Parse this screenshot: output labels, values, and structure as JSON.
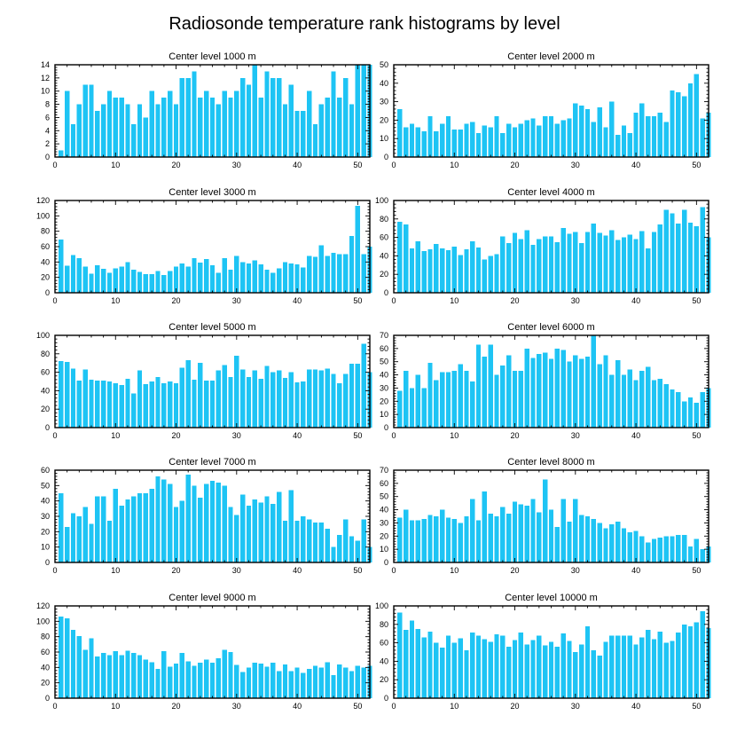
{
  "figure_title": "Radiosonde temperature rank histograms by level",
  "colors": {
    "bar": "#1EC4F4",
    "axis": "#000000",
    "background": "#FFFFFF"
  },
  "chart_data": [
    {
      "type": "bar",
      "title": "Center level 1000 m",
      "xlim": [
        0,
        52
      ],
      "ylim": [
        0,
        14
      ],
      "xticks": [
        0,
        10,
        20,
        30,
        40,
        50
      ],
      "yticks": [
        0,
        2,
        4,
        6,
        8,
        10,
        12,
        14
      ],
      "x": [
        1,
        2,
        3,
        4,
        5,
        6,
        7,
        8,
        9,
        10,
        11,
        12,
        13,
        14,
        15,
        16,
        17,
        18,
        19,
        20,
        21,
        22,
        23,
        24,
        25,
        26,
        27,
        28,
        29,
        30,
        31,
        32,
        33,
        34,
        35,
        36,
        37,
        38,
        39,
        40,
        41,
        42,
        43,
        44,
        45,
        46,
        47,
        48,
        49,
        50,
        51,
        52
      ],
      "values": [
        1,
        10,
        5,
        8,
        11,
        11,
        7,
        8,
        10,
        9,
        9,
        8,
        5,
        8,
        6,
        10,
        8,
        9,
        10,
        8,
        12,
        12,
        13,
        9,
        10,
        9,
        8,
        10,
        9,
        10,
        12,
        11,
        14,
        9,
        13,
        12,
        12,
        8,
        11,
        7,
        7,
        10,
        5,
        8,
        9,
        13,
        9,
        12,
        8,
        14,
        14,
        14
      ]
    },
    {
      "type": "bar",
      "title": "Center level 2000 m",
      "xlim": [
        0,
        52
      ],
      "ylim": [
        0,
        50
      ],
      "xticks": [
        0,
        10,
        20,
        30,
        40,
        50
      ],
      "yticks": [
        0,
        10,
        20,
        30,
        40,
        50
      ],
      "x": [
        1,
        2,
        3,
        4,
        5,
        6,
        7,
        8,
        9,
        10,
        11,
        12,
        13,
        14,
        15,
        16,
        17,
        18,
        19,
        20,
        21,
        22,
        23,
        24,
        25,
        26,
        27,
        28,
        29,
        30,
        31,
        32,
        33,
        34,
        35,
        36,
        37,
        38,
        39,
        40,
        41,
        42,
        43,
        44,
        45,
        46,
        47,
        48,
        49,
        50,
        51,
        52
      ],
      "values": [
        26,
        16,
        18,
        16,
        14,
        22,
        14,
        18,
        22,
        15,
        15,
        18,
        19,
        13,
        17,
        16,
        22,
        13,
        18,
        16,
        18,
        20,
        21,
        17,
        22,
        22,
        18,
        20,
        21,
        29,
        28,
        26,
        19,
        27,
        16,
        30,
        12,
        17,
        13,
        24,
        29,
        22,
        22,
        24,
        19,
        36,
        35,
        33,
        40,
        45,
        21,
        24
      ]
    },
    {
      "type": "bar",
      "title": "Center level 3000 m",
      "xlim": [
        0,
        52
      ],
      "ylim": [
        0,
        120
      ],
      "xticks": [
        0,
        10,
        20,
        30,
        40,
        50
      ],
      "yticks": [
        0,
        20,
        40,
        60,
        80,
        100,
        120
      ],
      "x": [
        1,
        2,
        3,
        4,
        5,
        6,
        7,
        8,
        9,
        10,
        11,
        12,
        13,
        14,
        15,
        16,
        17,
        18,
        19,
        20,
        21,
        22,
        23,
        24,
        25,
        26,
        27,
        28,
        29,
        30,
        31,
        32,
        33,
        34,
        35,
        36,
        37,
        38,
        39,
        40,
        41,
        42,
        43,
        44,
        45,
        46,
        47,
        48,
        49,
        50,
        51,
        52
      ],
      "values": [
        69,
        35,
        49,
        45,
        34,
        25,
        36,
        31,
        26,
        32,
        34,
        40,
        30,
        27,
        24,
        24,
        28,
        23,
        28,
        34,
        38,
        34,
        45,
        39,
        44,
        36,
        26,
        45,
        30,
        48,
        40,
        38,
        42,
        37,
        30,
        26,
        32,
        40,
        38,
        37,
        33,
        48,
        47,
        62,
        48,
        52,
        50,
        50,
        74,
        113,
        50,
        60
      ]
    },
    {
      "type": "bar",
      "title": "Center level 4000 m",
      "xlim": [
        0,
        52
      ],
      "ylim": [
        0,
        100
      ],
      "xticks": [
        0,
        10,
        20,
        30,
        40,
        50
      ],
      "yticks": [
        0,
        20,
        40,
        60,
        80,
        100
      ],
      "x": [
        1,
        2,
        3,
        4,
        5,
        6,
        7,
        8,
        9,
        10,
        11,
        12,
        13,
        14,
        15,
        16,
        17,
        18,
        19,
        20,
        21,
        22,
        23,
        24,
        25,
        26,
        27,
        28,
        29,
        30,
        31,
        32,
        33,
        34,
        35,
        36,
        37,
        38,
        39,
        40,
        41,
        42,
        43,
        44,
        45,
        46,
        47,
        48,
        49,
        50,
        51,
        52
      ],
      "values": [
        77,
        74,
        48,
        56,
        45,
        47,
        53,
        48,
        46,
        50,
        41,
        47,
        56,
        49,
        36,
        40,
        42,
        61,
        54,
        65,
        58,
        68,
        52,
        58,
        61,
        61,
        55,
        70,
        64,
        66,
        54,
        66,
        75,
        65,
        62,
        68,
        57,
        60,
        63,
        58,
        67,
        48,
        66,
        74,
        90,
        86,
        75,
        90,
        76,
        72,
        93,
        60
      ]
    },
    {
      "type": "bar",
      "title": "Center level 5000 m",
      "xlim": [
        0,
        52
      ],
      "ylim": [
        0,
        100
      ],
      "xticks": [
        0,
        10,
        20,
        30,
        40,
        50
      ],
      "yticks": [
        0,
        20,
        40,
        60,
        80,
        100
      ],
      "x": [
        1,
        2,
        3,
        4,
        5,
        6,
        7,
        8,
        9,
        10,
        11,
        12,
        13,
        14,
        15,
        16,
        17,
        18,
        19,
        20,
        21,
        22,
        23,
        24,
        25,
        26,
        27,
        28,
        29,
        30,
        31,
        32,
        33,
        34,
        35,
        36,
        37,
        38,
        39,
        40,
        41,
        42,
        43,
        44,
        45,
        46,
        47,
        48,
        49,
        50,
        51,
        52
      ],
      "values": [
        72,
        71,
        64,
        51,
        63,
        52,
        51,
        51,
        50,
        48,
        46,
        53,
        37,
        62,
        47,
        50,
        55,
        48,
        50,
        48,
        65,
        73,
        52,
        70,
        51,
        51,
        62,
        68,
        55,
        78,
        63,
        55,
        62,
        53,
        67,
        60,
        62,
        54,
        60,
        49,
        50,
        63,
        63,
        62,
        64,
        58,
        48,
        58,
        69,
        69,
        91,
        60
      ]
    },
    {
      "type": "bar",
      "title": "Center level 6000 m",
      "xlim": [
        0,
        52
      ],
      "ylim": [
        0,
        70
      ],
      "xticks": [
        0,
        10,
        20,
        30,
        40,
        50
      ],
      "yticks": [
        0,
        10,
        20,
        30,
        40,
        50,
        60,
        70
      ],
      "x": [
        1,
        2,
        3,
        4,
        5,
        6,
        7,
        8,
        9,
        10,
        11,
        12,
        13,
        14,
        15,
        16,
        17,
        18,
        19,
        20,
        21,
        22,
        23,
        24,
        25,
        26,
        27,
        28,
        29,
        30,
        31,
        32,
        33,
        34,
        35,
        36,
        37,
        38,
        39,
        40,
        41,
        42,
        43,
        44,
        45,
        46,
        47,
        48,
        49,
        50,
        51,
        52
      ],
      "values": [
        28,
        43,
        30,
        40,
        30,
        49,
        36,
        42,
        42,
        43,
        48,
        43,
        35,
        63,
        54,
        63,
        40,
        47,
        55,
        43,
        43,
        60,
        53,
        56,
        57,
        52,
        60,
        59,
        50,
        55,
        52,
        54,
        70,
        48,
        55,
        40,
        51,
        40,
        44,
        36,
        43,
        46,
        36,
        37,
        33,
        29,
        27,
        20,
        23,
        19,
        27,
        30
      ]
    },
    {
      "type": "bar",
      "title": "Center level 7000 m",
      "xlim": [
        0,
        52
      ],
      "ylim": [
        0,
        60
      ],
      "xticks": [
        0,
        10,
        20,
        30,
        40,
        50
      ],
      "yticks": [
        0,
        10,
        20,
        30,
        40,
        50,
        60
      ],
      "x": [
        1,
        2,
        3,
        4,
        5,
        6,
        7,
        8,
        9,
        10,
        11,
        12,
        13,
        14,
        15,
        16,
        17,
        18,
        19,
        20,
        21,
        22,
        23,
        24,
        25,
        26,
        27,
        28,
        29,
        30,
        31,
        32,
        33,
        34,
        35,
        36,
        37,
        38,
        39,
        40,
        41,
        42,
        43,
        44,
        45,
        46,
        47,
        48,
        49,
        50,
        51,
        52
      ],
      "values": [
        45,
        23,
        32,
        30,
        36,
        25,
        43,
        43,
        27,
        48,
        37,
        41,
        43,
        45,
        45,
        48,
        56,
        54,
        51,
        36,
        40,
        57,
        50,
        42,
        51,
        53,
        52,
        50,
        36,
        31,
        44,
        37,
        41,
        39,
        43,
        38,
        46,
        27,
        47,
        27,
        30,
        28,
        26,
        26,
        22,
        10,
        18,
        28,
        17,
        14,
        28,
        10
      ]
    },
    {
      "type": "bar",
      "title": "Center level 8000 m",
      "xlim": [
        0,
        52
      ],
      "ylim": [
        0,
        70
      ],
      "xticks": [
        0,
        10,
        20,
        30,
        40,
        50
      ],
      "yticks": [
        0,
        10,
        20,
        30,
        40,
        50,
        60,
        70
      ],
      "x": [
        1,
        2,
        3,
        4,
        5,
        6,
        7,
        8,
        9,
        10,
        11,
        12,
        13,
        14,
        15,
        16,
        17,
        18,
        19,
        20,
        21,
        22,
        23,
        24,
        25,
        26,
        27,
        28,
        29,
        30,
        31,
        32,
        33,
        34,
        35,
        36,
        37,
        38,
        39,
        40,
        41,
        42,
        43,
        44,
        45,
        46,
        47,
        48,
        49,
        50,
        51,
        52
      ],
      "values": [
        34,
        40,
        32,
        32,
        33,
        36,
        35,
        40,
        34,
        33,
        30,
        35,
        48,
        32,
        54,
        37,
        35,
        42,
        37,
        46,
        44,
        43,
        48,
        38,
        63,
        40,
        27,
        48,
        31,
        48,
        36,
        35,
        33,
        30,
        26,
        29,
        31,
        26,
        23,
        24,
        20,
        15,
        18,
        19,
        20,
        20,
        21,
        21,
        12,
        18,
        10,
        12
      ]
    },
    {
      "type": "bar",
      "title": "Center level 9000 m",
      "xlim": [
        0,
        52
      ],
      "ylim": [
        0,
        120
      ],
      "xticks": [
        0,
        10,
        20,
        30,
        40,
        50
      ],
      "yticks": [
        0,
        20,
        40,
        60,
        80,
        100,
        120
      ],
      "x": [
        1,
        2,
        3,
        4,
        5,
        6,
        7,
        8,
        9,
        10,
        11,
        12,
        13,
        14,
        15,
        16,
        17,
        18,
        19,
        20,
        21,
        22,
        23,
        24,
        25,
        26,
        27,
        28,
        29,
        30,
        31,
        32,
        33,
        34,
        35,
        36,
        37,
        38,
        39,
        40,
        41,
        42,
        43,
        44,
        45,
        46,
        47,
        48,
        49,
        50,
        51,
        52
      ],
      "values": [
        106,
        104,
        89,
        81,
        63,
        78,
        54,
        59,
        56,
        61,
        56,
        62,
        59,
        56,
        50,
        47,
        38,
        61,
        41,
        45,
        59,
        48,
        42,
        46,
        50,
        46,
        52,
        63,
        60,
        43,
        34,
        40,
        46,
        45,
        41,
        46,
        35,
        44,
        35,
        40,
        33,
        38,
        42,
        40,
        47,
        30,
        44,
        40,
        35,
        42,
        40,
        42
      ]
    },
    {
      "type": "bar",
      "title": "Center level 10000 m",
      "xlim": [
        0,
        52
      ],
      "ylim": [
        0,
        100
      ],
      "xticks": [
        0,
        10,
        20,
        30,
        40,
        50
      ],
      "yticks": [
        0,
        20,
        40,
        60,
        80,
        100
      ],
      "x": [
        1,
        2,
        3,
        4,
        5,
        6,
        7,
        8,
        9,
        10,
        11,
        12,
        13,
        14,
        15,
        16,
        17,
        18,
        19,
        20,
        21,
        22,
        23,
        24,
        25,
        26,
        27,
        28,
        29,
        30,
        31,
        32,
        33,
        34,
        35,
        36,
        37,
        38,
        39,
        40,
        41,
        42,
        43,
        44,
        45,
        46,
        47,
        48,
        49,
        50,
        51,
        52
      ],
      "values": [
        93,
        74,
        84,
        75,
        66,
        72,
        60,
        55,
        68,
        60,
        65,
        52,
        71,
        68,
        64,
        61,
        69,
        68,
        56,
        63,
        71,
        58,
        63,
        68,
        57,
        61,
        56,
        70,
        62,
        50,
        58,
        78,
        52,
        46,
        61,
        68,
        68,
        68,
        68,
        58,
        66,
        74,
        64,
        72,
        60,
        62,
        71,
        80,
        78,
        82,
        94,
        76
      ]
    }
  ]
}
